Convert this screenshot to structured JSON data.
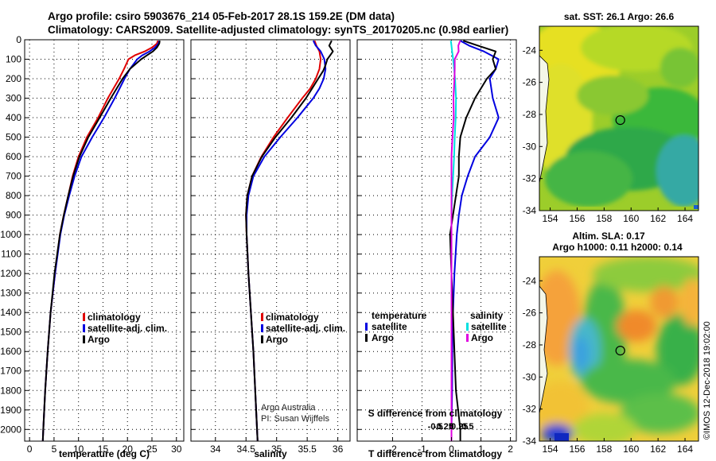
{
  "header": {
    "line1": "Argo profile: csiro 5903676_214 05-Feb-2017 28.1S 159.2E (DM data)",
    "line2": "Climatology: CARS2009. Satellite-adjusted climatology: synTS_20170205.nc (0.98d earlier)"
  },
  "depth_axis": {
    "ticks": [
      0,
      100,
      200,
      300,
      400,
      500,
      600,
      700,
      800,
      900,
      1000,
      1100,
      1200,
      1300,
      1400,
      1500,
      1600,
      1700,
      1800,
      1900,
      2000
    ],
    "range": [
      0,
      2060
    ]
  },
  "colors": {
    "climatology": "#e00000",
    "satellite": "#0000e0",
    "argo": "#000000",
    "sat_s": "#00e0e0",
    "argo_s": "#e000e0"
  },
  "chart_data": [
    {
      "id": "temperature",
      "type": "line",
      "xlabel": "temperature (deg C)",
      "xlim": [
        -1,
        31.5
      ],
      "xticks": [
        "0",
        "5",
        "10",
        "15",
        "20",
        "25",
        "30"
      ],
      "xtick_values": [
        0,
        5,
        10,
        15,
        20,
        25,
        30
      ],
      "legend": [
        "climatology",
        "satellite-adj. clim.",
        "Argo"
      ],
      "series": [
        {
          "name": "climatology",
          "color": "#e00000",
          "depth": [
            5,
            20,
            40,
            60,
            80,
            100,
            150,
            200,
            300,
            400,
            500,
            600,
            700,
            800,
            900,
            1000,
            1200,
            1400,
            1600,
            1800,
            2000,
            2060
          ],
          "values": [
            26.2,
            26.0,
            25.0,
            23.5,
            21.5,
            20.2,
            19.3,
            18.3,
            16.0,
            14.0,
            11.7,
            10.0,
            8.8,
            7.9,
            7.0,
            6.2,
            5.2,
            4.3,
            3.7,
            3.2,
            2.8,
            2.7
          ]
        },
        {
          "name": "satellite-adj. clim.",
          "color": "#0000e0",
          "depth": [
            5,
            20,
            40,
            60,
            80,
            100,
            150,
            200,
            300,
            400,
            500,
            600,
            700,
            800,
            900,
            1000,
            1200,
            1400,
            1600,
            1800,
            2000,
            2060
          ],
          "values": [
            26.5,
            26.3,
            25.6,
            24.5,
            23.0,
            22.0,
            20.5,
            19.4,
            17.4,
            15.2,
            12.8,
            10.6,
            9.2,
            8.1,
            7.1,
            6.3,
            5.2,
            4.3,
            3.7,
            3.2,
            2.8,
            2.7
          ]
        },
        {
          "name": "Argo",
          "color": "#000000",
          "depth": [
            5,
            20,
            40,
            60,
            80,
            100,
            150,
            200,
            300,
            400,
            500,
            600,
            700,
            800,
            900,
            1000,
            1200,
            1400,
            1600,
            1800,
            2000,
            2060
          ],
          "values": [
            26.6,
            26.5,
            26.0,
            25.2,
            24.0,
            22.8,
            20.5,
            19.0,
            16.6,
            14.3,
            12.0,
            10.2,
            8.9,
            7.9,
            7.0,
            6.2,
            5.1,
            4.3,
            3.7,
            3.2,
            2.8,
            2.7
          ]
        }
      ]
    },
    {
      "id": "salinity",
      "type": "line",
      "xlabel": "salinity",
      "xlim": [
        33.6,
        36.2
      ],
      "xticks": [
        "34",
        "34.5",
        "35",
        "35.5",
        "36"
      ],
      "xtick_values": [
        34,
        34.5,
        35,
        35.5,
        36
      ],
      "legend": [
        "climatology",
        "satellite-adj. clim.",
        "Argo"
      ],
      "credit": [
        "Argo Australia",
        "PI: Susan Wijffels"
      ],
      "series": [
        {
          "name": "climatology",
          "color": "#e00000",
          "depth": [
            5,
            30,
            60,
            100,
            150,
            200,
            250,
            300,
            400,
            500,
            600,
            700,
            800,
            900,
            1000,
            1200,
            1400,
            1600,
            1800,
            2000,
            2060
          ],
          "values": [
            35.62,
            35.65,
            35.7,
            35.72,
            35.7,
            35.64,
            35.55,
            35.42,
            35.18,
            34.95,
            34.75,
            34.6,
            34.52,
            34.5,
            34.51,
            34.54,
            34.58,
            34.62,
            34.65,
            34.68,
            34.69
          ]
        },
        {
          "name": "satellite-adj. clim.",
          "color": "#0000e0",
          "depth": [
            5,
            30,
            60,
            100,
            150,
            200,
            250,
            300,
            400,
            500,
            600,
            700,
            800,
            900,
            1000,
            1200,
            1400,
            1600,
            1800,
            2000,
            2060
          ],
          "values": [
            35.6,
            35.64,
            35.72,
            35.78,
            35.8,
            35.77,
            35.7,
            35.6,
            35.34,
            35.06,
            34.8,
            34.62,
            34.54,
            34.51,
            34.51,
            34.54,
            34.58,
            34.62,
            34.65,
            34.68,
            34.69
          ]
        },
        {
          "name": "Argo",
          "color": "#000000",
          "depth": [
            5,
            30,
            60,
            100,
            130,
            160,
            200,
            250,
            300,
            400,
            500,
            600,
            700,
            800,
            900,
            1000,
            1200,
            1400,
            1600,
            1800,
            2000,
            2060
          ],
          "values": [
            35.9,
            35.86,
            35.92,
            35.83,
            35.8,
            35.76,
            35.68,
            35.58,
            35.48,
            35.24,
            34.98,
            34.76,
            34.6,
            34.52,
            34.5,
            34.51,
            34.54,
            34.58,
            34.62,
            34.65,
            34.68,
            34.69
          ]
        }
      ]
    },
    {
      "id": "difference",
      "type": "line",
      "xlabel": "T difference from climatology",
      "xlim": [
        -3.2,
        2.2
      ],
      "xticks": [
        "-2",
        "-1",
        "0",
        "1",
        "2"
      ],
      "xtick_values": [
        -2,
        -1,
        0,
        1,
        2
      ],
      "s_axis_title": "S difference from climatology",
      "s_ticks": [
        "-0.5",
        "-0.25",
        "0",
        "0.25",
        "0.5"
      ],
      "s_tick_values": [
        -0.5,
        -0.25,
        0,
        0.25,
        0.5
      ],
      "legend_left_title": "temperature",
      "legend_left": [
        "satellite",
        "Argo"
      ],
      "legend_right_title": "salinity",
      "legend_right": [
        "satellite",
        "Argo"
      ],
      "series": [
        {
          "name": "T satellite",
          "color": "#0000e0",
          "depth": [
            5,
            30,
            60,
            100,
            150,
            200,
            300,
            400,
            500,
            600,
            700,
            800,
            900,
            1000,
            1200,
            1400,
            1600,
            1800,
            2000,
            2060
          ],
          "values": [
            0.3,
            0.6,
            1.1,
            1.6,
            1.5,
            1.3,
            1.4,
            1.6,
            1.3,
            0.8,
            0.55,
            0.35,
            0.25,
            0.18,
            0.1,
            0.05,
            0.03,
            0.02,
            0.0,
            0.0
          ]
        },
        {
          "name": "T Argo",
          "color": "#000000",
          "depth": [
            5,
            30,
            60,
            100,
            150,
            200,
            300,
            400,
            500,
            600,
            700,
            800,
            900,
            1000,
            1200,
            1400,
            1600,
            1800,
            2000,
            2060
          ],
          "values": [
            0.4,
            0.9,
            1.5,
            1.4,
            1.5,
            1.2,
            0.8,
            0.5,
            0.3,
            0.25,
            0.25,
            0.15,
            0.05,
            -0.05,
            0.0,
            0.05,
            0.1,
            0.15,
            0.3,
            0.3
          ]
        },
        {
          "name": "S satellite",
          "color": "#00e0e0",
          "depth": [
            5,
            30,
            60,
            100,
            150,
            200,
            300,
            400,
            500,
            600,
            700,
            800,
            900,
            1000,
            1200,
            1400,
            1600,
            1800,
            2000,
            2060
          ],
          "values": [
            -0.02,
            0.0,
            0.02,
            0.05,
            0.08,
            0.11,
            0.14,
            0.13,
            0.1,
            0.08,
            0.05,
            0.02,
            0.0,
            0.0,
            0.0,
            0.0,
            0.0,
            0.0,
            0.0,
            0.0
          ]
        },
        {
          "name": "S Argo",
          "color": "#e000e0",
          "depth": [
            5,
            30,
            60,
            100,
            150,
            200,
            300,
            400,
            500,
            600,
            700,
            800,
            900,
            1000,
            1200,
            1400,
            1600,
            1800,
            2000,
            2060
          ],
          "values": [
            0.27,
            0.21,
            0.22,
            0.1,
            0.1,
            0.09,
            0.06,
            0.07,
            0.03,
            0.0,
            0.0,
            0.0,
            0.0,
            0.0,
            0.0,
            0.0,
            0.0,
            0.0,
            0.0,
            0.0
          ]
        }
      ]
    }
  ],
  "maps": {
    "sst": {
      "title": "sat. SST: 26.1 Argo: 26.6",
      "lon_ticks": [
        "154",
        "156",
        "158",
        "160",
        "162",
        "164"
      ],
      "lat_ticks": [
        "-24",
        "-26",
        "-28",
        "-30",
        "-32",
        "-34"
      ],
      "lon_range": [
        153.2,
        165.0
      ],
      "lat_range": [
        -34.0,
        -22.5
      ],
      "marker": {
        "lon": 159.2,
        "lat": -28.1
      }
    },
    "sla": {
      "title1": "Altim. SLA: 0.17",
      "title2": "Argo h1000: 0.11 h2000: 0.14",
      "lon_ticks": [
        "154",
        "156",
        "158",
        "160",
        "162",
        "164"
      ],
      "lat_ticks": [
        "-24",
        "-26",
        "-28",
        "-30",
        "-32",
        "-34"
      ],
      "lon_range": [
        153.2,
        165.0
      ],
      "lat_range": [
        -34.0,
        -22.5
      ],
      "marker": {
        "lon": 159.2,
        "lat": -28.1
      }
    }
  },
  "footer": {
    "stamp": "©IMOS 12-Dec-2018 19:02:00"
  }
}
